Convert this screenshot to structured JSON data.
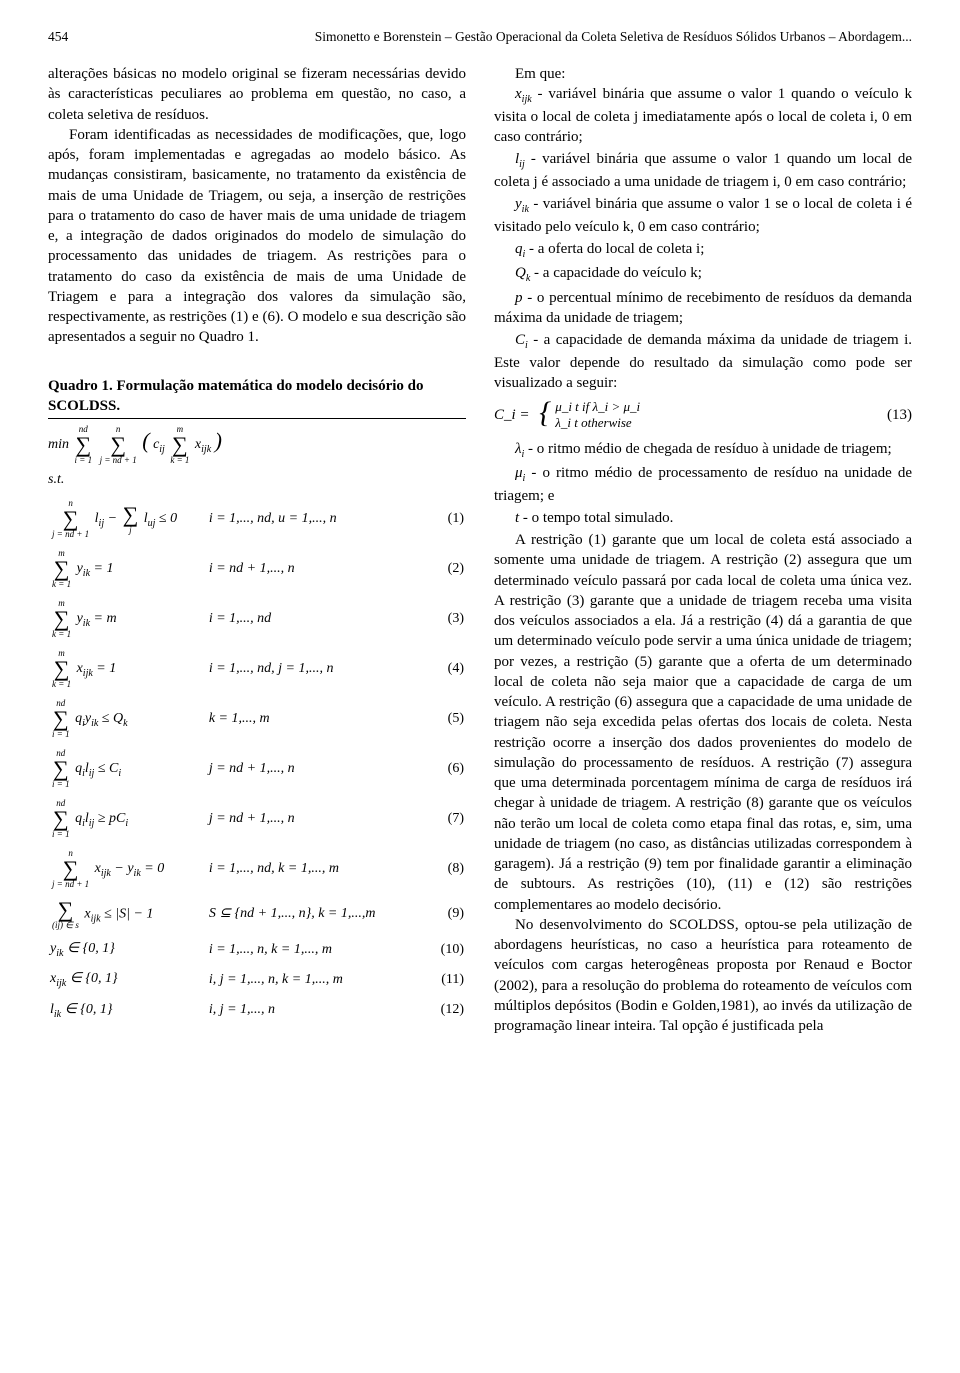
{
  "header": {
    "page_number": "454",
    "running_title": "Simonetto e Borenstein – Gestão Operacional da Coleta Seletiva de Resíduos Sólidos Urbanos – Abordagem..."
  },
  "left": {
    "p1": "alterações básicas no modelo original se fizeram necessárias devido às características peculiares ao problema em questão, no caso, a coleta seletiva de resíduos.",
    "p2": "Foram identificadas as necessidades de modificações, que, logo após, foram implementadas e agregadas ao modelo básico. As mudanças consistiram, basicamente, no tratamento da existência de mais de uma Unidade de Triagem, ou seja, a inserção de restrições para o tratamento do caso de haver mais de uma unidade de triagem e, a integração de dados originados do modelo de simulação do processamento das unidades de triagem. As restrições para o tratamento do caso da existência de mais de uma Unidade de Triagem e para a integração dos valores da simulação são, respectivamente, as restrições (1) e (6). O modelo e sua descrição são apresentados a seguir no Quadro 1.",
    "quadro_title": "Quadro 1. Formulação matemática do modelo decisório do SCOLDSS.",
    "objective_prefix": "min",
    "st": "s.t.",
    "constraints": [
      {
        "lhs": "Σ l_{ij} − Σ l_{uj} ≤ 0",
        "cond": "i = 1,..., nd, u = 1,..., n",
        "num": "(1)"
      },
      {
        "lhs": "Σ y_{ik} = 1",
        "cond": "i = nd + 1,..., n",
        "num": "(2)"
      },
      {
        "lhs": "Σ y_{ik} = m",
        "cond": "i = 1,..., nd",
        "num": "(3)"
      },
      {
        "lhs": "Σ x_{ijk} = 1",
        "cond": "i = 1,..., nd, j = 1,..., n",
        "num": "(4)"
      },
      {
        "lhs": "Σ q_i y_{ik} ≤ Q_k",
        "cond": "k = 1,..., m",
        "num": "(5)"
      },
      {
        "lhs": "Σ q_i l_{ij} ≤ C_i",
        "cond": "j = nd + 1,..., n",
        "num": "(6)"
      },
      {
        "lhs": "Σ q_i l_{ij} ≥ pC_i",
        "cond": "j = nd + 1,..., n",
        "num": "(7)"
      },
      {
        "lhs": "Σ x_{ijk} − y_{ik} = 0",
        "cond": "i = 1,..., nd, k = 1,..., m",
        "num": "(8)"
      },
      {
        "lhs": "Σ x_{ijk} ≤ |S| − 1",
        "cond": "S ⊆ {nd + 1,..., n}, k = 1,...,m",
        "num": "(9)"
      },
      {
        "lhs": "y_{ik} ∈ {0, 1}",
        "cond": "i = 1,..., n, k = 1,..., m",
        "num": "(10)"
      },
      {
        "lhs": "x_{ijk} ∈ {0, 1}",
        "cond": "i, j = 1,..., n, k = 1,..., m",
        "num": "(11)"
      },
      {
        "lhs": "l_{ik} ∈ {0, 1}",
        "cond": "i, j = 1,..., n",
        "num": "(12)"
      }
    ],
    "sums": {
      "obj_top1": "nd",
      "obj_bot1": "i = 1",
      "obj_top2": "n",
      "obj_bot2": "j = nd + 1",
      "obj_top3": "m",
      "obj_bot3": "k = 1",
      "c1a_top": "n",
      "c1a_bot": "j = nd + 1",
      "c1b_top": "",
      "c1b_bot": "j",
      "c2_top": "m",
      "c2_bot": "k = 1",
      "c3_top": "m",
      "c3_bot": "k = 1",
      "c4_top": "m",
      "c4_bot": "k = 1",
      "c5_top": "nd",
      "c5_bot": "i = 1",
      "c6_top": "nd",
      "c6_bot": "i = 1",
      "c7_top": "nd",
      "c7_bot": "i = 1",
      "c8_top": "n",
      "c8_bot": "j = nd + 1",
      "c9_top": "",
      "c9_bot": "(ij) ∈ s"
    }
  },
  "right": {
    "emque": "Em que:",
    "defs": [
      "x_{ijk} - variável binária que assume o valor 1 quando o veículo k visita o local de coleta j imediatamente após o local de coleta i, 0 em caso contrário;",
      "l_{ij} - variável binária que assume o valor 1 quando um local de coleta j é associado a uma unidade de triagem i, 0 em caso contrário;",
      "y_{ik} - variável binária que assume o valor 1 se o local de coleta i é visitado pelo veículo k, 0 em caso contrário;",
      "q_i - a oferta do local de coleta i;",
      "Q_k - a capacidade do veículo k;",
      "p - o percentual mínimo de recebimento de resíduos da demanda máxima da unidade de triagem;",
      "C_i - a capacidade de demanda máxima da unidade de triagem i. Este valor depende do resultado da simulação como pode ser visualizado a seguir:"
    ],
    "eq13_lhs": "C_i =",
    "eq13_case1": "μ_i t  if  λ_i > μ_i",
    "eq13_case2": "λ_i t  otherwise",
    "eq13_num": "(13)",
    "defs2": [
      "λ_i - o ritmo médio de chegada de resíduo à unidade de triagem;",
      "μ_i - o ritmo médio de processamento de resíduo na unidade de triagem; e",
      "t - o tempo total simulado."
    ],
    "p3": "A restrição (1) garante que um local de coleta está associado a somente uma unidade de triagem. A restrição (2) assegura que um determinado veículo passará por cada local de coleta uma única vez. A restrição (3) garante que a unidade de triagem receba uma visita dos veículos associados a ela. Já a restrição (4) dá a garantia de que um determinado veículo pode servir a uma única unidade de triagem; por vezes, a restrição (5) garante que a oferta de um determinado local de coleta não seja maior que a capacidade de carga de um veículo. A restrição (6) assegura que a capacidade de uma unidade de triagem não seja excedida pelas ofertas dos locais de coleta. Nesta restrição ocorre a inserção dos dados provenientes do modelo de simulação do processamento de resíduos. A restrição (7) assegura que uma determinada porcentagem mínima de carga de resíduos irá chegar à unidade de triagem. A restrição (8) garante que os veículos não terão um local de coleta como etapa final das rotas, e, sim, uma unidade de triagem (no caso, as distâncias utilizadas correspondem à garagem). Já a restrição (9) tem por finalidade garantir a eliminação de subtours. As restrições (10), (11) e (12) são restrições complementares ao modelo decisório.",
    "p4": "No desenvolvimento do SCOLDSS, optou-se pela utilização de abordagens heurísticas, no caso a heurística para roteamento de veículos com cargas heterogêneas proposta por Renaud e Boctor (2002), para a resolução do problema do roteamento de veículos com múltiplos depósitos (Bodin e Golden,1981), ao invés da utilização de programação linear inteira. Tal opção é justificada pela"
  }
}
